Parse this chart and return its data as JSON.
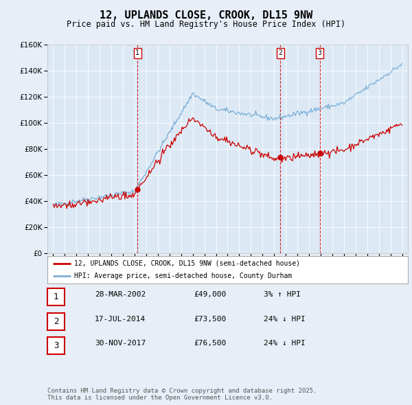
{
  "title": "12, UPLANDS CLOSE, CROOK, DL15 9NW",
  "subtitle": "Price paid vs. HM Land Registry's House Price Index (HPI)",
  "title_fontsize": 11,
  "subtitle_fontsize": 8.5,
  "background_color": "#dce9f5",
  "fig_bg_color": "#e8eef7",
  "hpi_color": "#7aaed6",
  "price_color": "#cc0000",
  "dashed_line_color": "#cc0000",
  "ylim": [
    0,
    160000
  ],
  "legend_label_property": "12, UPLANDS CLOSE, CROOK, DL15 9NW (semi-detached house)",
  "legend_label_hpi": "HPI: Average price, semi-detached house, County Durham",
  "sales": [
    {
      "num": 1,
      "date": "28-MAR-2002",
      "price": 49000,
      "pct": "3%",
      "dir": "↑",
      "year": 2002.25
    },
    {
      "num": 2,
      "date": "17-JUL-2014",
      "price": 73500,
      "pct": "24%",
      "dir": "↓",
      "year": 2014.54
    },
    {
      "num": 3,
      "date": "30-NOV-2017",
      "price": 76500,
      "pct": "24%",
      "dir": "↓",
      "year": 2017.92
    }
  ],
  "footer": "Contains HM Land Registry data © Crown copyright and database right 2025.\nThis data is licensed under the Open Government Licence v3.0.",
  "footer_fontsize": 6.5,
  "x_start_year": 1995,
  "x_end_year": 2025
}
